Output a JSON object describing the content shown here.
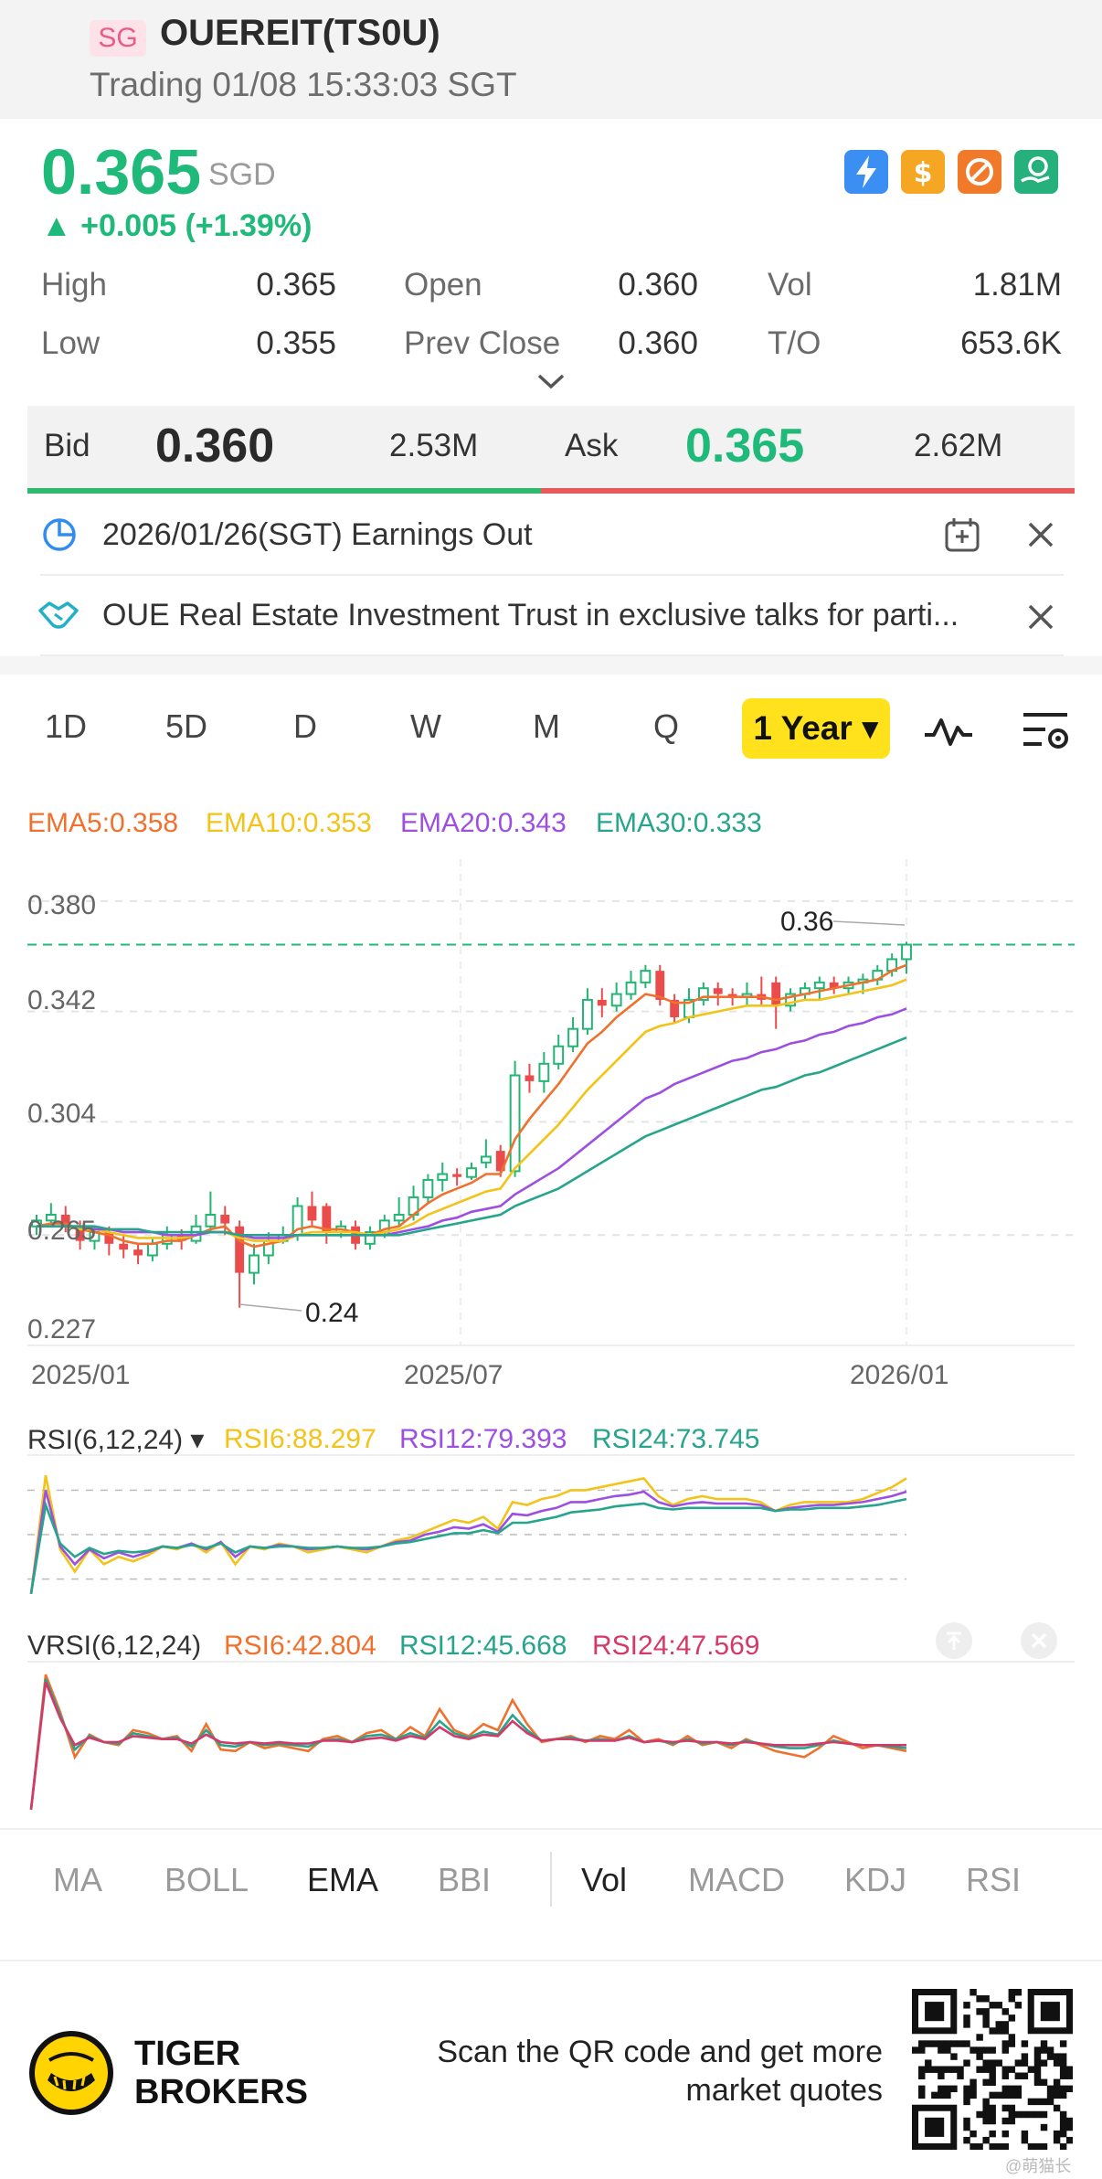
{
  "header": {
    "market_badge": "SG",
    "ticker": "OUEREIT(TS0U)",
    "status": "Trading 01/08 15:33:03 SGT"
  },
  "quote": {
    "price": "0.365",
    "currency": "SGD",
    "change": "▲ +0.005 (+1.39%)",
    "icons": [
      "lightning-icon",
      "dollar-icon",
      "no-short-icon",
      "hand-coin-icon"
    ],
    "stats": {
      "high_label": "High",
      "high": "0.365",
      "open_label": "Open",
      "open": "0.360",
      "vol_label": "Vol",
      "vol": "1.81M",
      "low_label": "Low",
      "low": "0.355",
      "prev_close_label": "Prev Close",
      "prev_close": "0.360",
      "to_label": "T/O",
      "to": "653.6K"
    }
  },
  "orderbook": {
    "bid_label": "Bid",
    "bid_price": "0.360",
    "bid_size": "2.53M",
    "ask_label": "Ask",
    "ask_price": "0.365",
    "ask_size": "2.62M",
    "bid_ratio": 0.49
  },
  "notices": [
    {
      "text": "2026/01/26(SGT) Earnings Out"
    },
    {
      "text": "OUE Real Estate Investment Trust in exclusive talks for parti..."
    }
  ],
  "periods": [
    "1D",
    "5D",
    "D",
    "W",
    "M",
    "Q"
  ],
  "active_period": "1 Year ▾",
  "ema_legend": [
    {
      "text": "EMA5:0.358",
      "color": "#f0712e"
    },
    {
      "text": "EMA10:0.353",
      "color": "#f2c318"
    },
    {
      "text": "EMA20:0.343",
      "color": "#9c4fe0"
    },
    {
      "text": "EMA30:0.333",
      "color": "#27a48c"
    }
  ],
  "chart_data": {
    "type": "candlestick",
    "y_ticks": [
      "0.380",
      "0.342",
      "0.304",
      "0.265",
      "0.227"
    ],
    "ylim": [
      0.227,
      0.385
    ],
    "x_ticks": [
      "2025/01",
      "2025/07",
      "2026/01"
    ],
    "annotations": [
      {
        "text": "0.36"
      },
      {
        "text": "0.24"
      }
    ],
    "current_price": 0.365,
    "candles": [
      [
        0.268,
        0.27,
        0.265,
        0.272
      ],
      [
        0.27,
        0.272,
        0.268,
        0.276
      ],
      [
        0.272,
        0.268,
        0.266,
        0.275
      ],
      [
        0.268,
        0.263,
        0.26,
        0.27
      ],
      [
        0.263,
        0.266,
        0.26,
        0.268
      ],
      [
        0.266,
        0.262,
        0.258,
        0.268
      ],
      [
        0.262,
        0.26,
        0.257,
        0.265
      ],
      [
        0.26,
        0.258,
        0.255,
        0.262
      ],
      [
        0.258,
        0.262,
        0.256,
        0.264
      ],
      [
        0.262,
        0.265,
        0.26,
        0.268
      ],
      [
        0.265,
        0.263,
        0.26,
        0.267
      ],
      [
        0.263,
        0.268,
        0.262,
        0.272
      ],
      [
        0.268,
        0.272,
        0.266,
        0.28
      ],
      [
        0.272,
        0.269,
        0.265,
        0.275
      ],
      [
        0.268,
        0.252,
        0.24,
        0.27
      ],
      [
        0.252,
        0.258,
        0.248,
        0.262
      ],
      [
        0.258,
        0.263,
        0.255,
        0.266
      ],
      [
        0.263,
        0.265,
        0.262,
        0.268
      ],
      [
        0.265,
        0.275,
        0.263,
        0.278
      ],
      [
        0.275,
        0.27,
        0.268,
        0.28
      ],
      [
        0.275,
        0.266,
        0.262,
        0.276
      ],
      [
        0.266,
        0.268,
        0.264,
        0.27
      ],
      [
        0.268,
        0.262,
        0.26,
        0.27
      ],
      [
        0.262,
        0.266,
        0.26,
        0.268
      ],
      [
        0.266,
        0.27,
        0.264,
        0.272
      ],
      [
        0.27,
        0.272,
        0.268,
        0.278
      ],
      [
        0.272,
        0.278,
        0.27,
        0.282
      ],
      [
        0.278,
        0.284,
        0.276,
        0.286
      ],
      [
        0.284,
        0.286,
        0.28,
        0.29
      ],
      [
        0.286,
        0.285,
        0.282,
        0.288
      ],
      [
        0.285,
        0.288,
        0.284,
        0.29
      ],
      [
        0.29,
        0.292,
        0.288,
        0.298
      ],
      [
        0.294,
        0.287,
        0.285,
        0.296
      ],
      [
        0.287,
        0.32,
        0.285,
        0.325
      ],
      [
        0.32,
        0.318,
        0.314,
        0.324
      ],
      [
        0.318,
        0.324,
        0.314,
        0.328
      ],
      [
        0.324,
        0.33,
        0.322,
        0.334
      ],
      [
        0.33,
        0.336,
        0.328,
        0.34
      ],
      [
        0.336,
        0.346,
        0.334,
        0.35
      ],
      [
        0.346,
        0.344,
        0.34,
        0.35
      ],
      [
        0.344,
        0.348,
        0.342,
        0.352
      ],
      [
        0.348,
        0.352,
        0.346,
        0.356
      ],
      [
        0.352,
        0.356,
        0.35,
        0.358
      ],
      [
        0.356,
        0.346,
        0.344,
        0.358
      ],
      [
        0.346,
        0.34,
        0.338,
        0.348
      ],
      [
        0.34,
        0.346,
        0.338,
        0.35
      ],
      [
        0.346,
        0.35,
        0.344,
        0.352
      ],
      [
        0.35,
        0.348,
        0.344,
        0.352
      ],
      [
        0.348,
        0.347,
        0.344,
        0.35
      ],
      [
        0.347,
        0.348,
        0.344,
        0.352
      ],
      [
        0.348,
        0.346,
        0.344,
        0.354
      ],
      [
        0.352,
        0.344,
        0.336,
        0.354
      ],
      [
        0.344,
        0.348,
        0.342,
        0.35
      ],
      [
        0.348,
        0.35,
        0.346,
        0.352
      ],
      [
        0.35,
        0.352,
        0.346,
        0.354
      ],
      [
        0.352,
        0.35,
        0.348,
        0.354
      ],
      [
        0.35,
        0.352,
        0.348,
        0.354
      ],
      [
        0.352,
        0.353,
        0.348,
        0.355
      ],
      [
        0.353,
        0.356,
        0.351,
        0.358
      ],
      [
        0.356,
        0.36,
        0.354,
        0.362
      ],
      [
        0.36,
        0.365,
        0.355,
        0.366
      ]
    ],
    "series": [
      {
        "name": "EMA5",
        "values": [
          0.268,
          0.269,
          0.269,
          0.267,
          0.266,
          0.265,
          0.263,
          0.262,
          0.262,
          0.263,
          0.263,
          0.265,
          0.267,
          0.268,
          0.263,
          0.261,
          0.262,
          0.263,
          0.267,
          0.268,
          0.267,
          0.267,
          0.266,
          0.265,
          0.267,
          0.268,
          0.272,
          0.276,
          0.279,
          0.281,
          0.283,
          0.286,
          0.286,
          0.298,
          0.305,
          0.311,
          0.317,
          0.324,
          0.331,
          0.335,
          0.34,
          0.344,
          0.348,
          0.347,
          0.345,
          0.345,
          0.347,
          0.347,
          0.347,
          0.347,
          0.347,
          0.346,
          0.347,
          0.348,
          0.349,
          0.35,
          0.351,
          0.352,
          0.353,
          0.356,
          0.358
        ]
      },
      {
        "name": "EMA10",
        "values": [
          0.268,
          0.268,
          0.268,
          0.267,
          0.267,
          0.266,
          0.265,
          0.264,
          0.264,
          0.264,
          0.264,
          0.265,
          0.266,
          0.266,
          0.264,
          0.263,
          0.263,
          0.263,
          0.265,
          0.266,
          0.266,
          0.266,
          0.266,
          0.265,
          0.266,
          0.267,
          0.269,
          0.272,
          0.274,
          0.276,
          0.278,
          0.28,
          0.281,
          0.288,
          0.293,
          0.298,
          0.303,
          0.309,
          0.315,
          0.32,
          0.325,
          0.33,
          0.335,
          0.337,
          0.338,
          0.34,
          0.341,
          0.342,
          0.343,
          0.344,
          0.344,
          0.344,
          0.345,
          0.346,
          0.346,
          0.347,
          0.348,
          0.349,
          0.35,
          0.351,
          0.353
        ]
      },
      {
        "name": "EMA20",
        "values": [
          0.268,
          0.268,
          0.268,
          0.268,
          0.267,
          0.267,
          0.266,
          0.266,
          0.266,
          0.265,
          0.265,
          0.265,
          0.266,
          0.266,
          0.265,
          0.264,
          0.264,
          0.264,
          0.265,
          0.265,
          0.265,
          0.265,
          0.265,
          0.265,
          0.265,
          0.266,
          0.267,
          0.268,
          0.27,
          0.271,
          0.273,
          0.274,
          0.275,
          0.279,
          0.282,
          0.285,
          0.288,
          0.292,
          0.296,
          0.3,
          0.304,
          0.308,
          0.312,
          0.314,
          0.317,
          0.319,
          0.321,
          0.323,
          0.325,
          0.326,
          0.328,
          0.329,
          0.331,
          0.332,
          0.334,
          0.335,
          0.337,
          0.338,
          0.34,
          0.341,
          0.343
        ]
      },
      {
        "name": "EMA30",
        "values": [
          0.268,
          0.268,
          0.268,
          0.268,
          0.268,
          0.267,
          0.267,
          0.267,
          0.266,
          0.266,
          0.266,
          0.266,
          0.266,
          0.266,
          0.265,
          0.265,
          0.265,
          0.265,
          0.265,
          0.265,
          0.265,
          0.265,
          0.265,
          0.265,
          0.265,
          0.265,
          0.266,
          0.267,
          0.268,
          0.269,
          0.27,
          0.271,
          0.272,
          0.275,
          0.277,
          0.279,
          0.281,
          0.284,
          0.287,
          0.29,
          0.293,
          0.296,
          0.299,
          0.301,
          0.303,
          0.305,
          0.307,
          0.309,
          0.311,
          0.313,
          0.315,
          0.316,
          0.318,
          0.32,
          0.321,
          0.323,
          0.325,
          0.327,
          0.329,
          0.331,
          0.333
        ]
      }
    ]
  },
  "rsi": {
    "label": "RSI(6,12,24) ▾",
    "values": [
      {
        "text": "RSI6:88.297",
        "color": "#f2c318"
      },
      {
        "text": "RSI12:79.393",
        "color": "#9c4fe0"
      },
      {
        "text": "RSI24:73.745",
        "color": "#27a48c"
      }
    ],
    "series": [
      {
        "name": "RSI6",
        "values": [
          10,
          90,
          40,
          25,
          40,
          30,
          35,
          32,
          36,
          42,
          40,
          44,
          38,
          45,
          30,
          42,
          40,
          44,
          42,
          38,
          40,
          42,
          40,
          38,
          42,
          46,
          48,
          52,
          56,
          60,
          58,
          62,
          54,
          72,
          70,
          74,
          76,
          80,
          80,
          82,
          84,
          86,
          88,
          76,
          70,
          74,
          76,
          74,
          74,
          74,
          72,
          66,
          70,
          72,
          72,
          72,
          72,
          74,
          78,
          82,
          88
        ]
      },
      {
        "name": "RSI12",
        "values": [
          10,
          80,
          42,
          30,
          40,
          34,
          38,
          35,
          38,
          42,
          41,
          44,
          40,
          45,
          35,
          42,
          41,
          43,
          42,
          40,
          41,
          42,
          41,
          40,
          42,
          45,
          46,
          50,
          52,
          55,
          54,
          57,
          52,
          64,
          63,
          66,
          68,
          72,
          72,
          74,
          76,
          77,
          79,
          72,
          69,
          71,
          72,
          71,
          71,
          71,
          70,
          66,
          68,
          69,
          70,
          70,
          71,
          72,
          74,
          76,
          79
        ]
      },
      {
        "name": "RSI24",
        "values": [
          10,
          70,
          44,
          35,
          41,
          37,
          39,
          38,
          39,
          42,
          41,
          43,
          41,
          44,
          38,
          42,
          41,
          42,
          42,
          41,
          41,
          42,
          41,
          41,
          42,
          44,
          45,
          47,
          49,
          51,
          51,
          53,
          51,
          58,
          58,
          60,
          62,
          65,
          66,
          67,
          69,
          70,
          71,
          68,
          67,
          68,
          68,
          68,
          68,
          68,
          68,
          66,
          67,
          67,
          68,
          68,
          68,
          69,
          70,
          72,
          74
        ]
      }
    ]
  },
  "vrsi": {
    "label": "VRSI(6,12,24)",
    "values": [
      {
        "text": "RSI6:42.804",
        "color": "#f0712e"
      },
      {
        "text": "RSI12:45.668",
        "color": "#27a48c"
      },
      {
        "text": "RSI24:47.569",
        "color": "#d63868"
      }
    ],
    "series": [
      {
        "name": "RSI6",
        "values": [
          5,
          95,
          70,
          40,
          55,
          50,
          48,
          58,
          56,
          52,
          54,
          44,
          62,
          45,
          44,
          50,
          46,
          48,
          46,
          44,
          52,
          54,
          50,
          56,
          58,
          52,
          60,
          54,
          72,
          58,
          54,
          62,
          58,
          78,
          62,
          50,
          52,
          54,
          50,
          54,
          52,
          58,
          50,
          52,
          48,
          54,
          48,
          50,
          46,
          52,
          48,
          44,
          42,
          40,
          46,
          54,
          50,
          46,
          48,
          46,
          44
        ]
      },
      {
        "name": "RSI12",
        "values": [
          5,
          92,
          68,
          45,
          54,
          50,
          49,
          56,
          54,
          52,
          53,
          47,
          58,
          48,
          47,
          50,
          48,
          49,
          48,
          47,
          51,
          52,
          50,
          54,
          55,
          52,
          56,
          53,
          64,
          56,
          53,
          57,
          55,
          68,
          58,
          51,
          52,
          53,
          51,
          52,
          51,
          54,
          50,
          51,
          49,
          52,
          49,
          50,
          48,
          51,
          49,
          47,
          46,
          46,
          48,
          51,
          49,
          48,
          48,
          47,
          46
        ]
      },
      {
        "name": "RSI24",
        "values": [
          5,
          90,
          66,
          48,
          53,
          50,
          50,
          54,
          53,
          52,
          52,
          49,
          55,
          50,
          49,
          50,
          49,
          50,
          49,
          49,
          51,
          51,
          50,
          52,
          53,
          51,
          54,
          52,
          60,
          54,
          52,
          55,
          54,
          64,
          56,
          51,
          52,
          52,
          51,
          51,
          51,
          53,
          50,
          51,
          50,
          51,
          50,
          50,
          49,
          50,
          49,
          48,
          48,
          48,
          49,
          50,
          49,
          48,
          48,
          48,
          48
        ]
      }
    ]
  },
  "indicator_tabs": [
    "MA",
    "BOLL",
    "EMA",
    "BBI",
    "Vol",
    "MACD",
    "KDJ",
    "RSI"
  ],
  "active_indicator": "EMA",
  "active_sub_indicator": "Vol",
  "footer": {
    "brand_line1": "TIGER",
    "brand_line2": "BROKERS",
    "cta_line1": "Scan the QR code and get more",
    "cta_line2": "market quotes",
    "watermark": "@萌猫长"
  }
}
